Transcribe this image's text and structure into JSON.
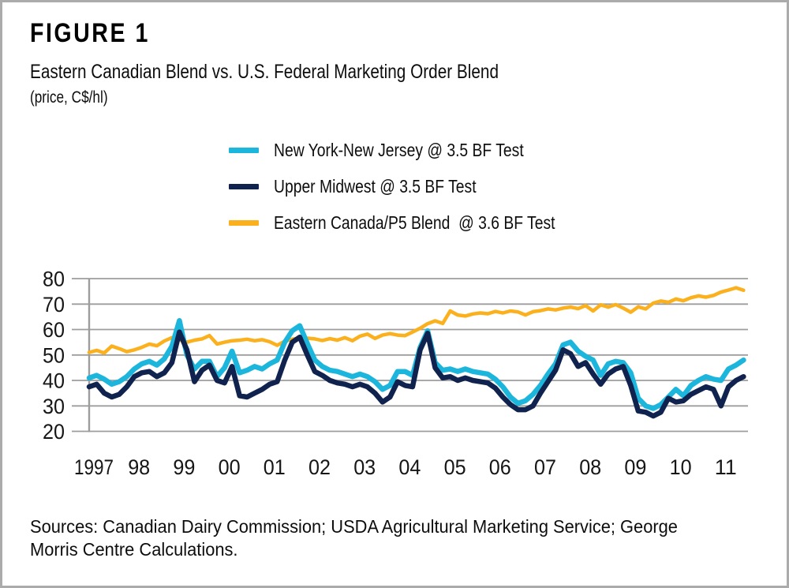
{
  "header": {
    "figure_label": "FIGURE 1",
    "title": "Eastern Canadian Blend vs. U.S. Federal Marketing Order Blend",
    "unit": "(price, C$/hl)"
  },
  "legend": {
    "items": [
      {
        "label": "New York-New Jersey @ 3.5 BF Test",
        "color": "#1CB5DC"
      },
      {
        "label": "Upper Midwest @ 3.5 BF Test",
        "color": "#10224E"
      },
      {
        "label": "Eastern Canada/P5 Blend  @ 3.6 BF Test",
        "color": "#FBB11E"
      }
    ]
  },
  "chart_data": {
    "type": "line",
    "title": "Eastern Canadian Blend vs. U.S. Federal Marketing Order Blend",
    "ylabel": "price, C$/hl",
    "xlabel": "",
    "ylim": [
      20,
      80
    ],
    "grid": "horizontal",
    "legend_position": "top-center",
    "y_ticks": [
      80,
      70,
      60,
      50,
      40,
      30,
      20
    ],
    "x_tick_labels": [
      "1997",
      "98",
      "99",
      "00",
      "01",
      "02",
      "03",
      "04",
      "05",
      "06",
      "07",
      "08",
      "09",
      "10",
      "11"
    ],
    "x_start_year": 1997.0,
    "x_step_years": 0.1666667,
    "series": [
      {
        "id": "eastern_canada",
        "name": "Eastern Canada/P5 Blend @ 3.6 BF Test",
        "color": "#FBB11E",
        "stroke_width": 4.5,
        "values": [
          51,
          51.8,
          50.8,
          53.5,
          52.5,
          51.3,
          52,
          53,
          54.3,
          53.6,
          55.5,
          56.8,
          56,
          55,
          55.8,
          56.3,
          57.6,
          54.3,
          55,
          55.6,
          55.8,
          56.2,
          55.6,
          56,
          55.2,
          53.8,
          55.4,
          56.2,
          56.5,
          56.6,
          56.3,
          55.7,
          56.4,
          55.8,
          56.8,
          55.6,
          57.4,
          58.2,
          56.5,
          57.8,
          58.4,
          57.8,
          57.6,
          59,
          60.5,
          62.3,
          63.4,
          62.4,
          67.3,
          65.7,
          65.3,
          66.1,
          66.5,
          66.2,
          67.1,
          66.5,
          67.3,
          66.9,
          65.7,
          67,
          67.4,
          68.1,
          67.7,
          68.4,
          68.8,
          68.2,
          69.4,
          67.3,
          69.7,
          68.8,
          69.8,
          68.4,
          66.8,
          68.9,
          68.1,
          70.4,
          71.2,
          70.7,
          72,
          71.3,
          72.5,
          73.2,
          72.7,
          73.4,
          74.7,
          75.5,
          76.4,
          75.4
        ]
      },
      {
        "id": "ny_nj",
        "name": "New York-New Jersey @ 3.5 BF Test",
        "color": "#1CB5DC",
        "stroke_width": 6.5,
        "values": [
          41,
          42,
          40.5,
          38.5,
          39.5,
          41.5,
          44.5,
          46.5,
          47.5,
          46,
          48.5,
          53.5,
          63.5,
          50,
          44.5,
          47.5,
          47.5,
          41.5,
          45,
          51.5,
          43,
          44,
          45.5,
          44.5,
          46.5,
          48,
          55,
          59.5,
          61.5,
          54.5,
          48,
          45.5,
          44,
          43.5,
          42.5,
          41.5,
          42.5,
          41.5,
          39.5,
          36.5,
          38,
          43.5,
          43.5,
          42,
          53,
          59.5,
          47,
          44,
          44.5,
          43.5,
          44.5,
          43.5,
          43,
          42.5,
          40.5,
          37.5,
          33.5,
          31,
          32,
          34.5,
          38,
          42.5,
          46.5,
          54,
          55,
          51.5,
          49.5,
          48,
          42,
          46.5,
          47.5,
          47,
          43,
          33,
          30,
          29,
          30.5,
          33.5,
          36.5,
          34,
          38,
          40,
          41.5,
          40.5,
          40,
          44.5,
          46,
          48
        ]
      },
      {
        "id": "upper_midwest",
        "name": "Upper Midwest @ 3.5 BF Test",
        "color": "#10224E",
        "stroke_width": 6.5,
        "values": [
          37.5,
          38.5,
          35,
          33.5,
          34.5,
          37.5,
          41.5,
          43,
          43.5,
          41.5,
          43,
          47,
          59,
          52,
          39.5,
          44,
          46,
          40,
          39,
          45.5,
          34,
          33.5,
          35,
          36.5,
          38.5,
          39.5,
          48,
          55,
          57,
          50,
          43.5,
          42,
          40,
          39,
          38.5,
          37.5,
          38.5,
          37.5,
          35,
          31.5,
          33.5,
          39.5,
          38,
          37.5,
          52,
          58.5,
          45,
          41,
          41.5,
          40,
          41,
          40,
          39.5,
          39,
          37,
          33.5,
          30.5,
          28.5,
          28.5,
          30,
          35,
          39.5,
          44,
          52,
          50.5,
          45.5,
          47,
          42.5,
          38.5,
          42.5,
          44.5,
          45.5,
          38,
          28,
          27.5,
          26,
          27.5,
          33,
          31.5,
          32,
          34.5,
          36,
          37.5,
          36.5,
          30,
          37.5,
          40,
          41.5
        ]
      }
    ]
  },
  "sources": {
    "lines": [
      "Sources: Canadian Dairy Commission; USDA Agricultural Marketing Service; George",
      "Morris Centre Calculations."
    ]
  }
}
